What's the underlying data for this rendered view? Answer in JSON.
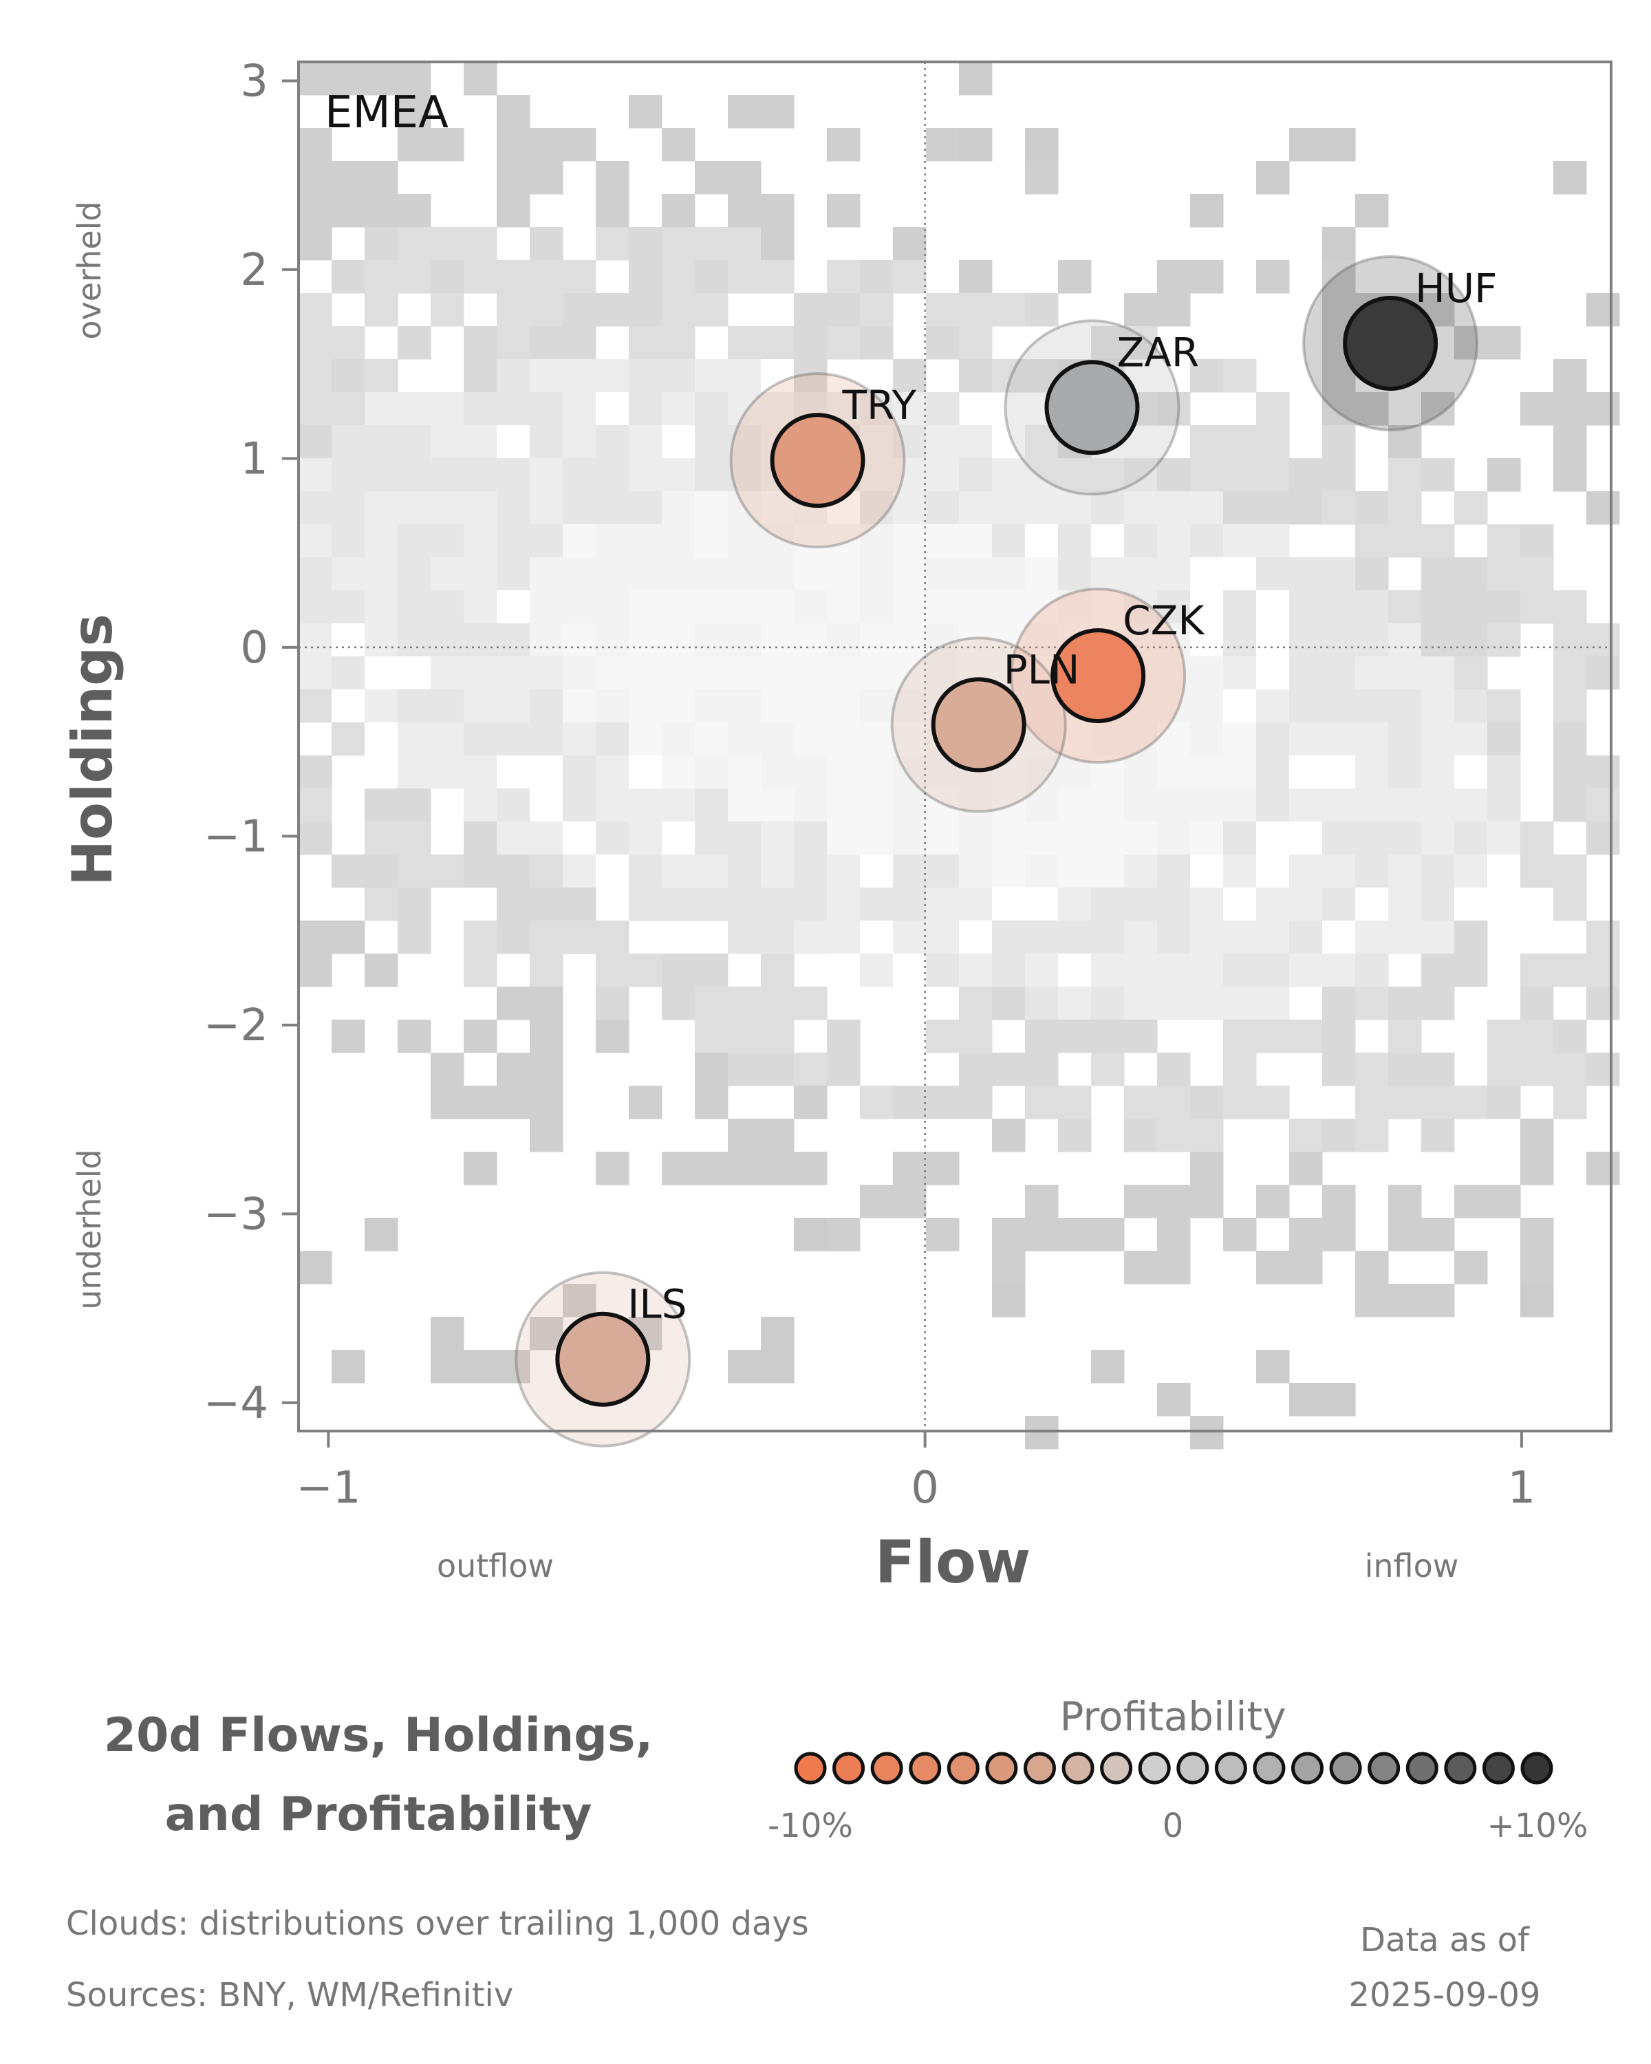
{
  "region_label": "EMEA",
  "title_line1": "20d Flows, Holdings,",
  "title_line2": "and Profitability",
  "footer": {
    "clouds": "Clouds:  distributions over trailing 1,000 days",
    "sources": "Sources:  BNY, WM/Refinitiv",
    "asof_label": "Data as of",
    "asof_date": "2025-09-09"
  },
  "legend": {
    "title": "Profitability",
    "min_label": "-10%",
    "mid_label": "0",
    "max_label": "+10%",
    "colors": [
      "#ef7b4f",
      "#ec7f55",
      "#e9845d",
      "#e68a66",
      "#e1916f",
      "#dc9a7d",
      "#d7a691",
      "#d4b4a4",
      "#d2c4bd",
      "#cfcfcf",
      "#c7c7c7",
      "#bdbdbd",
      "#b1b1b1",
      "#a3a3a3",
      "#949494",
      "#838383",
      "#707070",
      "#5b5b5b",
      "#444444",
      "#353535"
    ]
  },
  "chart_data": {
    "type": "scatter",
    "xlabel": "Flow",
    "ylabel": "Holdings",
    "x_side_labels": {
      "left": "outflow",
      "right": "inflow"
    },
    "y_side_labels": {
      "top": "overheld",
      "bottom": "underheld"
    },
    "xlim": [
      -1.05,
      1.15
    ],
    "ylim": [
      -4.15,
      3.1
    ],
    "xticks": [
      -1,
      0,
      1
    ],
    "xtick_labels": [
      "−1",
      "0",
      "1"
    ],
    "yticks": [
      3,
      2,
      1,
      0,
      -1,
      -2,
      -3,
      -4
    ],
    "ytick_labels": [
      "3",
      "2",
      "1",
      "0",
      "−1",
      "−2",
      "−3",
      "−4"
    ],
    "reference_lines": {
      "x": 0,
      "y": 0,
      "style": "dotted"
    },
    "background": "grey density cloud of trailing 1,000-day distributions",
    "points": [
      {
        "label": "HUF",
        "x": 0.78,
        "y": 1.61,
        "color": "#3a3a3a"
      },
      {
        "label": "ZAR",
        "x": 0.28,
        "y": 1.27,
        "color": "#a9aaab"
      },
      {
        "label": "TRY",
        "x": -0.18,
        "y": 0.99,
        "color": "#e09a7e"
      },
      {
        "label": "CZK",
        "x": 0.29,
        "y": -0.15,
        "color": "#ec855f"
      },
      {
        "label": "PLN",
        "x": 0.09,
        "y": -0.41,
        "color": "#d9ac98"
      },
      {
        "label": "ILS",
        "x": -0.54,
        "y": -3.77,
        "color": "#d8ab98"
      }
    ]
  }
}
